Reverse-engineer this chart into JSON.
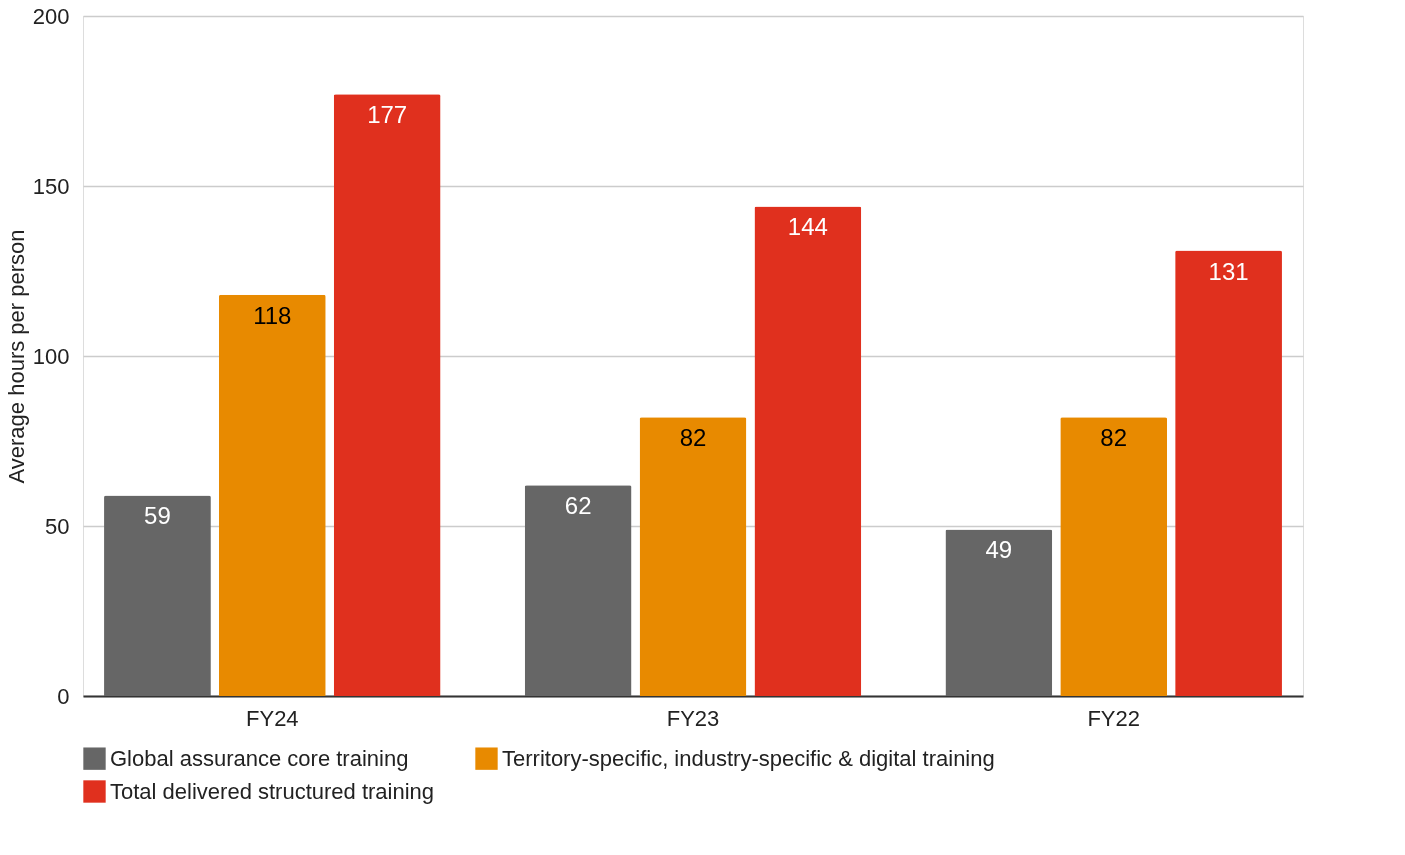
{
  "chart_data": {
    "type": "bar",
    "ylabel": "Average hours per person",
    "categories": [
      "FY24",
      "FY23",
      "FY22"
    ],
    "series": [
      {
        "name": "Global assurance core training",
        "color": "#666666",
        "values": [
          59,
          62,
          49
        ]
      },
      {
        "name": "Territory-specific, industry-specific & digital training",
        "color": "#e88a00",
        "values": [
          118,
          82,
          82
        ]
      },
      {
        "name": "Total delivered structured training",
        "color": "#e0301e",
        "values": [
          177,
          144,
          131
        ]
      }
    ],
    "ylim": [
      0,
      200
    ],
    "yticks": [
      0,
      50,
      100,
      150,
      200
    ],
    "grid": "y",
    "legend": "bottom",
    "data_labels": true
  }
}
